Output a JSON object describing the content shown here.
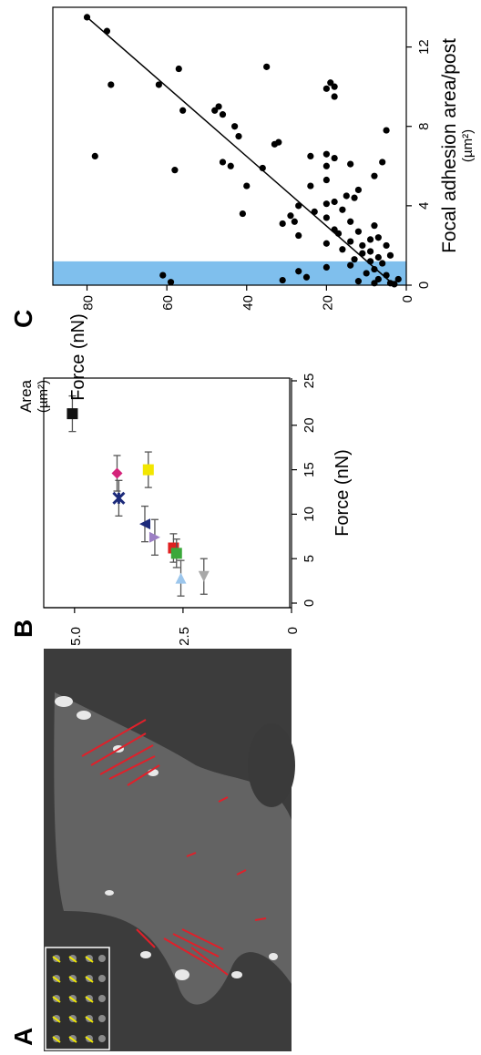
{
  "panels": {
    "a": {
      "letter": "A"
    },
    "b": {
      "letter": "B"
    },
    "c": {
      "letter": "C"
    }
  },
  "chart_data": [
    {
      "panel": "B",
      "type": "scatter",
      "title": "",
      "xlabel": "Force (nN)",
      "ylabel_line1": "Area",
      "ylabel_line2": "(µm²)",
      "xlim": [
        0,
        25
      ],
      "ylim": [
        0,
        5.5
      ],
      "xticks": [
        0,
        5,
        10,
        15,
        20,
        25
      ],
      "yticks": [
        0,
        2.5,
        5.0
      ],
      "ytick_labels": [
        "0",
        "2.5",
        "5.0"
      ],
      "grid": false,
      "points": [
        {
          "x": 14.6,
          "y": 4.02,
          "xerr": 2.0,
          "marker": "diamond",
          "color": "#d4237a"
        },
        {
          "x": 21.3,
          "y": 5.05,
          "xerr": 2.0,
          "marker": "square",
          "color": "#111111"
        },
        {
          "x": 11.8,
          "y": 3.98,
          "xerr": 2.0,
          "marker": "star",
          "color": "#1c2a7a"
        },
        {
          "x": 15.0,
          "y": 3.3,
          "xerr": 2.0,
          "marker": "square",
          "color": "#f2e600"
        },
        {
          "x": 8.9,
          "y": 3.38,
          "xerr": 2.0,
          "marker": "triangle-left",
          "color": "#1c2a7a"
        },
        {
          "x": 7.4,
          "y": 3.15,
          "xerr": 2.0,
          "marker": "triangle-right",
          "color": "#9c7fc4"
        },
        {
          "x": 6.2,
          "y": 2.72,
          "xerr": 1.6,
          "marker": "square",
          "color": "#e02020"
        },
        {
          "x": 5.6,
          "y": 2.65,
          "xerr": 1.6,
          "marker": "square",
          "color": "#3aa83a"
        },
        {
          "x": 2.8,
          "y": 2.55,
          "xerr": 2.0,
          "marker": "triangle-up",
          "color": "#9cc6ec"
        },
        {
          "x": 3.0,
          "y": 2.02,
          "xerr": 2.0,
          "marker": "triangle-down",
          "color": "#a8a8a8"
        }
      ]
    },
    {
      "panel": "C",
      "type": "scatter",
      "title": "",
      "xlabel": "Focal adhesion area/post",
      "xlabel_unit": "(µm²)",
      "ylabel": "Force (nN)",
      "xlim": [
        0,
        14
      ],
      "ylim": [
        0,
        84
      ],
      "xticks": [
        0,
        4,
        8,
        12
      ],
      "yticks": [
        0,
        20,
        40,
        60,
        80
      ],
      "grid": false,
      "highlight_band_x": [
        0,
        1.2
      ],
      "highlight_color": "#7fbfed",
      "fit_line": {
        "x": [
          0,
          13.5
        ],
        "y": [
          3,
          80
        ]
      },
      "points": [
        {
          "x": 13.5,
          "y": 80
        },
        {
          "x": 12.8,
          "y": 75
        },
        {
          "x": 11.0,
          "y": 35
        },
        {
          "x": 10.9,
          "y": 57
        },
        {
          "x": 10.2,
          "y": 19
        },
        {
          "x": 10.1,
          "y": 74
        },
        {
          "x": 10.1,
          "y": 62
        },
        {
          "x": 10.0,
          "y": 18
        },
        {
          "x": 9.9,
          "y": 20
        },
        {
          "x": 9.5,
          "y": 18
        },
        {
          "x": 9.0,
          "y": 47
        },
        {
          "x": 8.8,
          "y": 48
        },
        {
          "x": 8.8,
          "y": 56
        },
        {
          "x": 8.6,
          "y": 46
        },
        {
          "x": 8.0,
          "y": 43
        },
        {
          "x": 7.8,
          "y": 5
        },
        {
          "x": 7.5,
          "y": 42
        },
        {
          "x": 7.2,
          "y": 32
        },
        {
          "x": 7.1,
          "y": 33
        },
        {
          "x": 6.6,
          "y": 20
        },
        {
          "x": 6.5,
          "y": 78
        },
        {
          "x": 6.5,
          "y": 24
        },
        {
          "x": 6.4,
          "y": 18
        },
        {
          "x": 6.2,
          "y": 46
        },
        {
          "x": 6.2,
          "y": 6
        },
        {
          "x": 6.1,
          "y": 14
        },
        {
          "x": 6.0,
          "y": 20
        },
        {
          "x": 6.0,
          "y": 44
        },
        {
          "x": 5.9,
          "y": 36
        },
        {
          "x": 5.8,
          "y": 58
        },
        {
          "x": 5.5,
          "y": 8
        },
        {
          "x": 5.3,
          "y": 20
        },
        {
          "x": 5.0,
          "y": 24
        },
        {
          "x": 5.0,
          "y": 40
        },
        {
          "x": 4.8,
          "y": 12
        },
        {
          "x": 4.5,
          "y": 15
        },
        {
          "x": 4.4,
          "y": 13
        },
        {
          "x": 4.2,
          "y": 18
        },
        {
          "x": 4.1,
          "y": 20
        },
        {
          "x": 4.0,
          "y": 27
        },
        {
          "x": 3.8,
          "y": 16
        },
        {
          "x": 3.7,
          "y": 23
        },
        {
          "x": 3.6,
          "y": 41
        },
        {
          "x": 3.5,
          "y": 29
        },
        {
          "x": 3.4,
          "y": 20
        },
        {
          "x": 3.2,
          "y": 14
        },
        {
          "x": 3.2,
          "y": 28
        },
        {
          "x": 3.1,
          "y": 31
        },
        {
          "x": 3.0,
          "y": 8
        },
        {
          "x": 2.8,
          "y": 18
        },
        {
          "x": 2.7,
          "y": 12
        },
        {
          "x": 2.6,
          "y": 17
        },
        {
          "x": 2.5,
          "y": 27
        },
        {
          "x": 2.4,
          "y": 7
        },
        {
          "x": 2.3,
          "y": 9
        },
        {
          "x": 2.2,
          "y": 14
        },
        {
          "x": 2.1,
          "y": 20
        },
        {
          "x": 2.0,
          "y": 5
        },
        {
          "x": 2.0,
          "y": 11
        },
        {
          "x": 1.8,
          "y": 16
        },
        {
          "x": 1.7,
          "y": 9
        },
        {
          "x": 1.6,
          "y": 11
        },
        {
          "x": 1.5,
          "y": 4
        },
        {
          "x": 1.4,
          "y": 7
        },
        {
          "x": 1.3,
          "y": 13
        },
        {
          "x": 1.2,
          "y": 9
        },
        {
          "x": 1.1,
          "y": 6
        },
        {
          "x": 1.0,
          "y": 14
        },
        {
          "x": 0.9,
          "y": 20
        },
        {
          "x": 0.8,
          "y": 8
        },
        {
          "x": 0.7,
          "y": 27
        },
        {
          "x": 0.6,
          "y": 10
        },
        {
          "x": 0.5,
          "y": 61
        },
        {
          "x": 0.5,
          "y": 5
        },
        {
          "x": 0.4,
          "y": 25
        },
        {
          "x": 0.3,
          "y": 7
        },
        {
          "x": 0.25,
          "y": 31
        },
        {
          "x": 0.2,
          "y": 12
        },
        {
          "x": 0.15,
          "y": 59
        },
        {
          "x": 0.1,
          "y": 4
        },
        {
          "x": 0.1,
          "y": 8
        },
        {
          "x": 0.05,
          "y": 3
        },
        {
          "x": 0.3,
          "y": 2
        }
      ]
    }
  ],
  "colors": {
    "micrograph_background": "#3c3c3c",
    "force_vector": "#e0202a",
    "inset_vector": "#f2ea00"
  }
}
